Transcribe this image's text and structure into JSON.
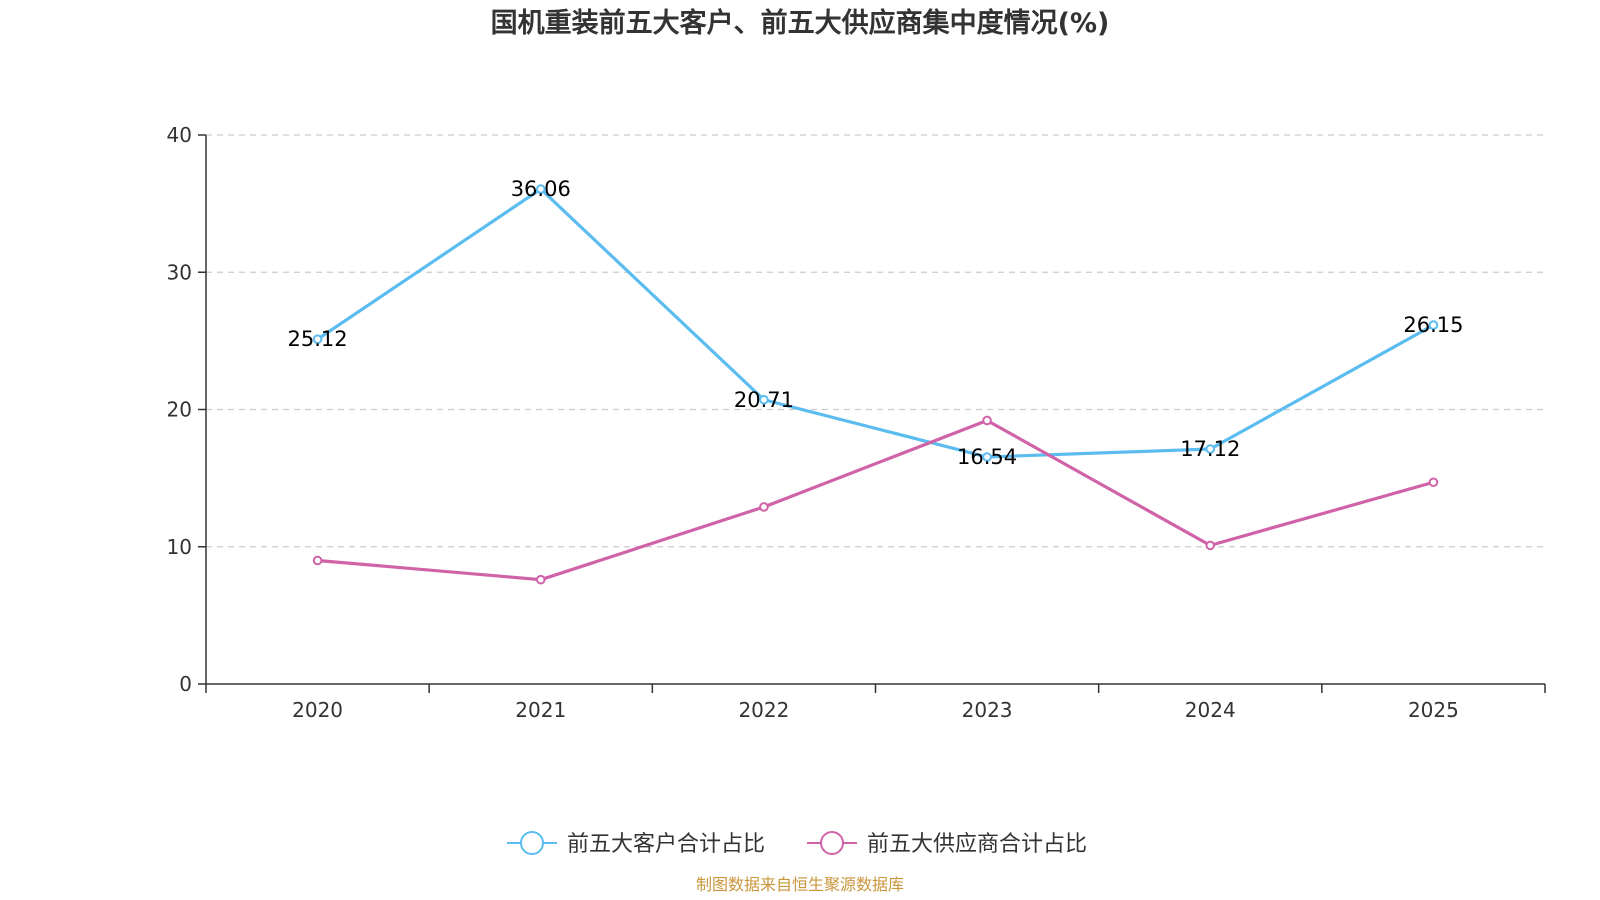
{
  "chart_data": {
    "type": "line",
    "title": "国机重装前五大客户、前五大供应商集中度情况(%)",
    "categories": [
      "2020",
      "2021",
      "2022",
      "2023",
      "2024",
      "2025"
    ],
    "ylim": [
      0,
      40
    ],
    "yticks": [
      0,
      10,
      20,
      30,
      40
    ],
    "grid": true,
    "legend_position": "bottom-center",
    "series": [
      {
        "name": "前五大客户合计占比",
        "color": "#5bbcf0",
        "values": [
          25.12,
          36.06,
          20.71,
          16.54,
          17.12,
          26.15
        ],
        "labels": [
          "25.12",
          "36.06",
          "20.71",
          "16.54",
          "17.12",
          "26.15"
        ]
      },
      {
        "name": "前五大供应商合计占比",
        "color": "#d063a8",
        "values": [
          9.0,
          7.6,
          12.9,
          19.2,
          10.1,
          14.7
        ]
      }
    ]
  },
  "source": "制图数据来自恒生聚源数据库"
}
